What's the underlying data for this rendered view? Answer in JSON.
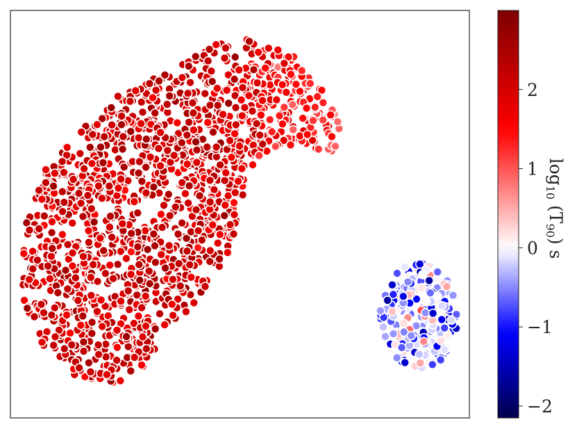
{
  "chart_data": {
    "type": "scatter",
    "title": "",
    "xlabel": "",
    "ylabel": "",
    "x_ticks_visible": false,
    "y_ticks_visible": false,
    "grid": false,
    "legend": "none",
    "color_map": "seismic",
    "colorbar": {
      "label_parts": {
        "base": "log",
        "base_sub": "10",
        "open": " (T",
        "t_sub": "90",
        "close": ") s"
      },
      "range": [
        -2.15,
        3.0
      ],
      "ticks": [
        -2,
        -1,
        0,
        1,
        2
      ],
      "tick_labels": [
        "−2",
        "−1",
        "0",
        "1",
        "2"
      ],
      "placement": "right",
      "color_stops": [
        "#00004c",
        "#0000ff",
        "#ffffff",
        "#ff0000",
        "#7f0000"
      ]
    },
    "marker": {
      "edge_color": "#ffffff"
    },
    "clusters": [
      {
        "description_hidden": true,
        "member_count_approx": 1550,
        "color_value_mean": 1.75,
        "color_value_range": [
          -0.8,
          2.7
        ],
        "outline_points": [
          [
            -9.6,
            1.0
          ],
          [
            -9.4,
            3.0
          ],
          [
            -8.6,
            5.0
          ],
          [
            -7.2,
            6.6
          ],
          [
            -5.6,
            7.8
          ],
          [
            -3.4,
            8.8
          ],
          [
            -1.6,
            9.7
          ],
          [
            -0.2,
            10.0
          ],
          [
            1.6,
            9.4
          ],
          [
            2.6,
            8.5
          ],
          [
            3.4,
            7.4
          ],
          [
            3.8,
            6.1
          ],
          [
            3.0,
            5.5
          ],
          [
            2.1,
            6.1
          ],
          [
            0.9,
            5.8
          ],
          [
            -0.1,
            4.8
          ],
          [
            -0.6,
            3.4
          ],
          [
            -0.9,
            2.0
          ],
          [
            -1.8,
            0.8
          ],
          [
            -2.9,
            -0.6
          ],
          [
            -4.1,
            -2.1
          ],
          [
            -5.6,
            -2.9
          ],
          [
            -7.2,
            -2.7
          ],
          [
            -8.5,
            -1.7
          ],
          [
            -9.4,
            -0.3
          ]
        ]
      },
      {
        "description_hidden": true,
        "member_count_approx": 220,
        "color_value_mean": -0.45,
        "color_value_range": [
          -2.0,
          1.3
        ],
        "center": [
          6.9,
          -0.4
        ],
        "radius": [
          1.6,
          2.0
        ]
      }
    ],
    "xlim": [
      -10.0,
      9.0
    ],
    "ylim": [
      -4.2,
      11.0
    ]
  }
}
